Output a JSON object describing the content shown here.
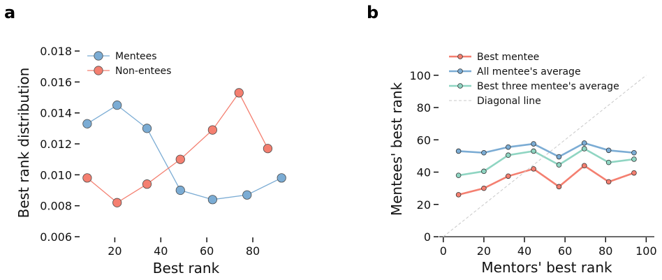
{
  "chart_data": [
    {
      "panel": "a",
      "type": "line",
      "xlabel": "Best rank",
      "ylabel": "Best rank distribution",
      "xlim": [
        5,
        97
      ],
      "ylim": [
        0.006,
        0.0185
      ],
      "xticks": [
        20,
        40,
        60,
        80
      ],
      "yticks": [
        0.006,
        0.008,
        0.01,
        0.012,
        0.014,
        0.016,
        0.018
      ],
      "ytick_labels": [
        "0.006",
        "0.008",
        "0.010",
        "0.012",
        "0.014",
        "0.016",
        "0.018"
      ],
      "legend": "top-left",
      "grid": false,
      "series": [
        {
          "name": "Mentees",
          "color": "#7bacd4",
          "marker": "circle",
          "x": [
            8,
            21,
            34,
            48.5,
            62.5,
            77.5,
            92.5
          ],
          "y": [
            0.0133,
            0.0145,
            0.013,
            0.009,
            0.0084,
            0.0087,
            0.0098
          ]
        },
        {
          "name": "Non-entees",
          "color": "#f47f70",
          "marker": "circle",
          "x": [
            8,
            21,
            34,
            48.5,
            62.5,
            74,
            86.5
          ],
          "y": [
            0.0098,
            0.0082,
            0.0094,
            0.011,
            0.0129,
            0.0153,
            0.0117
          ]
        }
      ]
    },
    {
      "panel": "b",
      "type": "line",
      "xlabel": "Mentors' best rank",
      "ylabel": "Mentees' best rank",
      "xlim": [
        -2,
        104
      ],
      "ylim": [
        0,
        112
      ],
      "xticks": [
        0,
        20,
        40,
        60,
        80,
        100
      ],
      "yticks": [
        0,
        20,
        40,
        60,
        80,
        100
      ],
      "legend": "top-left",
      "grid": false,
      "series": [
        {
          "name": "Best mentee",
          "color": "#f47f70",
          "marker": "circle",
          "x": [
            7.5,
            20,
            32,
            44.5,
            57,
            69.5,
            81.5,
            94
          ],
          "y": [
            26,
            30,
            37.5,
            42,
            31,
            44,
            34,
            39.5
          ]
        },
        {
          "name": "All mentee's average",
          "color": "#7bacd4",
          "marker": "circle",
          "x": [
            7.5,
            20,
            32,
            44.5,
            57,
            69.5,
            81.5,
            94
          ],
          "y": [
            53,
            52,
            55.5,
            57.5,
            49.5,
            58,
            53.5,
            52
          ]
        },
        {
          "name": "Best three mentee's average",
          "color": "#8fd5c2",
          "marker": "circle",
          "x": [
            7.5,
            20,
            32,
            44.5,
            57,
            69.5,
            81.5,
            94
          ],
          "y": [
            38,
            40.5,
            50.5,
            53,
            44.5,
            54.5,
            46,
            48
          ]
        },
        {
          "name": "Diagonal line",
          "color": "#c8c8c8",
          "dashed": true,
          "x": [
            0,
            100
          ],
          "y": [
            0,
            100
          ]
        }
      ]
    }
  ]
}
